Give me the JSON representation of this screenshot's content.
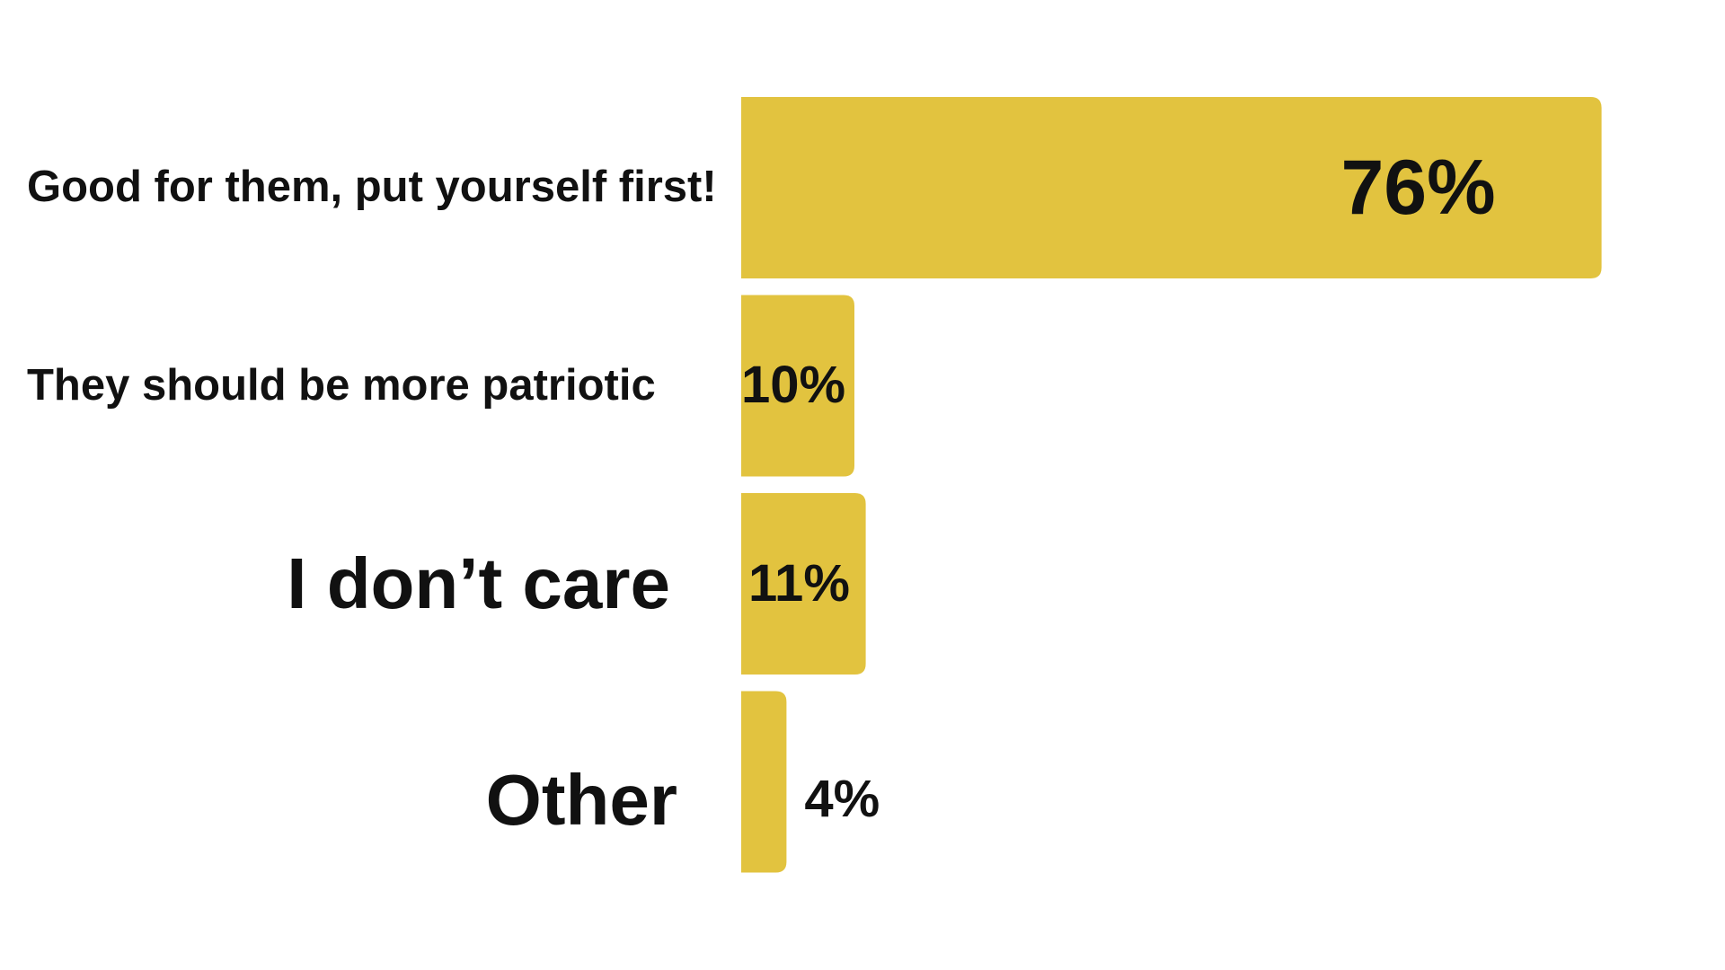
{
  "chart_data": {
    "type": "bar",
    "orientation": "horizontal",
    "categories": [
      "Good for them, put yourself first!",
      "They should be more patriotic",
      "I don’t care",
      "Other"
    ],
    "values": [
      76,
      10,
      11,
      4
    ],
    "value_labels": [
      "76%",
      "10%",
      "11%",
      "4%"
    ],
    "color": "#e2c33f"
  }
}
